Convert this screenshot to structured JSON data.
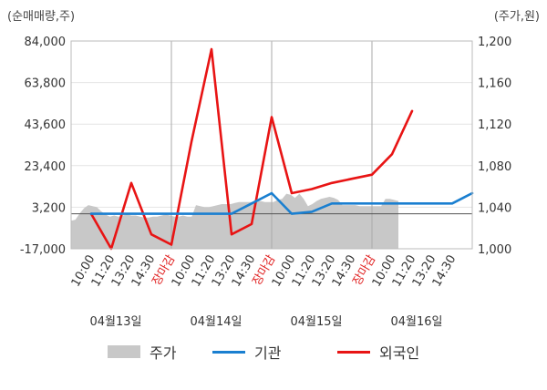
{
  "chart_data": {
    "type": "line",
    "left_axis": {
      "unit": "(순매매량,주)",
      "ticks": [
        "84,000",
        "63,800",
        "43,600",
        "23,400",
        "3,200",
        "-17,000"
      ],
      "range": [
        -17000,
        84000
      ]
    },
    "right_axis": {
      "unit": "(주가,원)",
      "ticks": [
        "1,200",
        "1,160",
        "1,120",
        "1,080",
        "1,040",
        "1,000"
      ],
      "range": [
        1000,
        1200
      ]
    },
    "x_labels": [
      {
        "text": "10:00",
        "red": false
      },
      {
        "text": "11:20",
        "red": false
      },
      {
        "text": "13:20",
        "red": false
      },
      {
        "text": "14:30",
        "red": false
      },
      {
        "text": "장마감",
        "red": true
      },
      {
        "text": "10:00",
        "red": false
      },
      {
        "text": "11:20",
        "red": false
      },
      {
        "text": "13:20",
        "red": false
      },
      {
        "text": "14:30",
        "red": false
      },
      {
        "text": "장마감",
        "red": true
      },
      {
        "text": "10:00",
        "red": false
      },
      {
        "text": "11:20",
        "red": false
      },
      {
        "text": "13:20",
        "red": false
      },
      {
        "text": "14:30",
        "red": false
      },
      {
        "text": "장마감",
        "red": true
      },
      {
        "text": "10:00",
        "red": false
      },
      {
        "text": "11:20",
        "red": false
      },
      {
        "text": "13:20",
        "red": false
      },
      {
        "text": "14:30",
        "red": false
      }
    ],
    "day_labels": [
      "04월13일",
      "04월14일",
      "04월15일",
      "04월16일"
    ],
    "series": [
      {
        "name": "주가",
        "axis": "right",
        "color": "#c8c8c8",
        "kind": "area",
        "values": [
          1027,
          1028,
          1034,
          1039,
          1042,
          1041,
          1040,
          1036,
          1033,
          1031,
          1032,
          1031,
          1032,
          1033,
          1032,
          1032,
          1031,
          1030,
          1030,
          1031,
          1031,
          1032,
          1033,
          1032,
          1031,
          1031,
          1032,
          1031,
          1031,
          1042,
          1041,
          1040,
          1040,
          1041,
          1042,
          1043,
          1043,
          1043,
          1044,
          1045,
          1045,
          1045,
          1045,
          1046,
          1046,
          1045,
          1045,
          1045,
          1047,
          1048,
          1053,
          1052,
          1049,
          1053,
          1048,
          1041,
          1043,
          1046,
          1048,
          1049,
          1050,
          1049,
          1047,
          1042,
          1042,
          1042,
          1042,
          1041,
          1041,
          1041,
          1041,
          1041,
          1041,
          1048,
          1048,
          1047,
          1046
        ]
      },
      {
        "name": "기관",
        "axis": "left",
        "color": "#1a7fd0",
        "kind": "line",
        "values": [
          0,
          0,
          0,
          0,
          0,
          0,
          0,
          0,
          5000,
          10000,
          0,
          1000,
          5000,
          5000,
          5000,
          5000,
          5000,
          5000,
          5000,
          10000
        ]
      },
      {
        "name": "외국인",
        "axis": "left",
        "color": "#e81414",
        "kind": "line",
        "values": [
          0,
          -17000,
          15000,
          -10000,
          -15000,
          35000,
          80000,
          -10000,
          -5000,
          47000,
          10000,
          12000,
          15000,
          17000,
          19000,
          29000,
          50000
        ]
      }
    ],
    "grid": true,
    "legend_position": "bottom"
  }
}
